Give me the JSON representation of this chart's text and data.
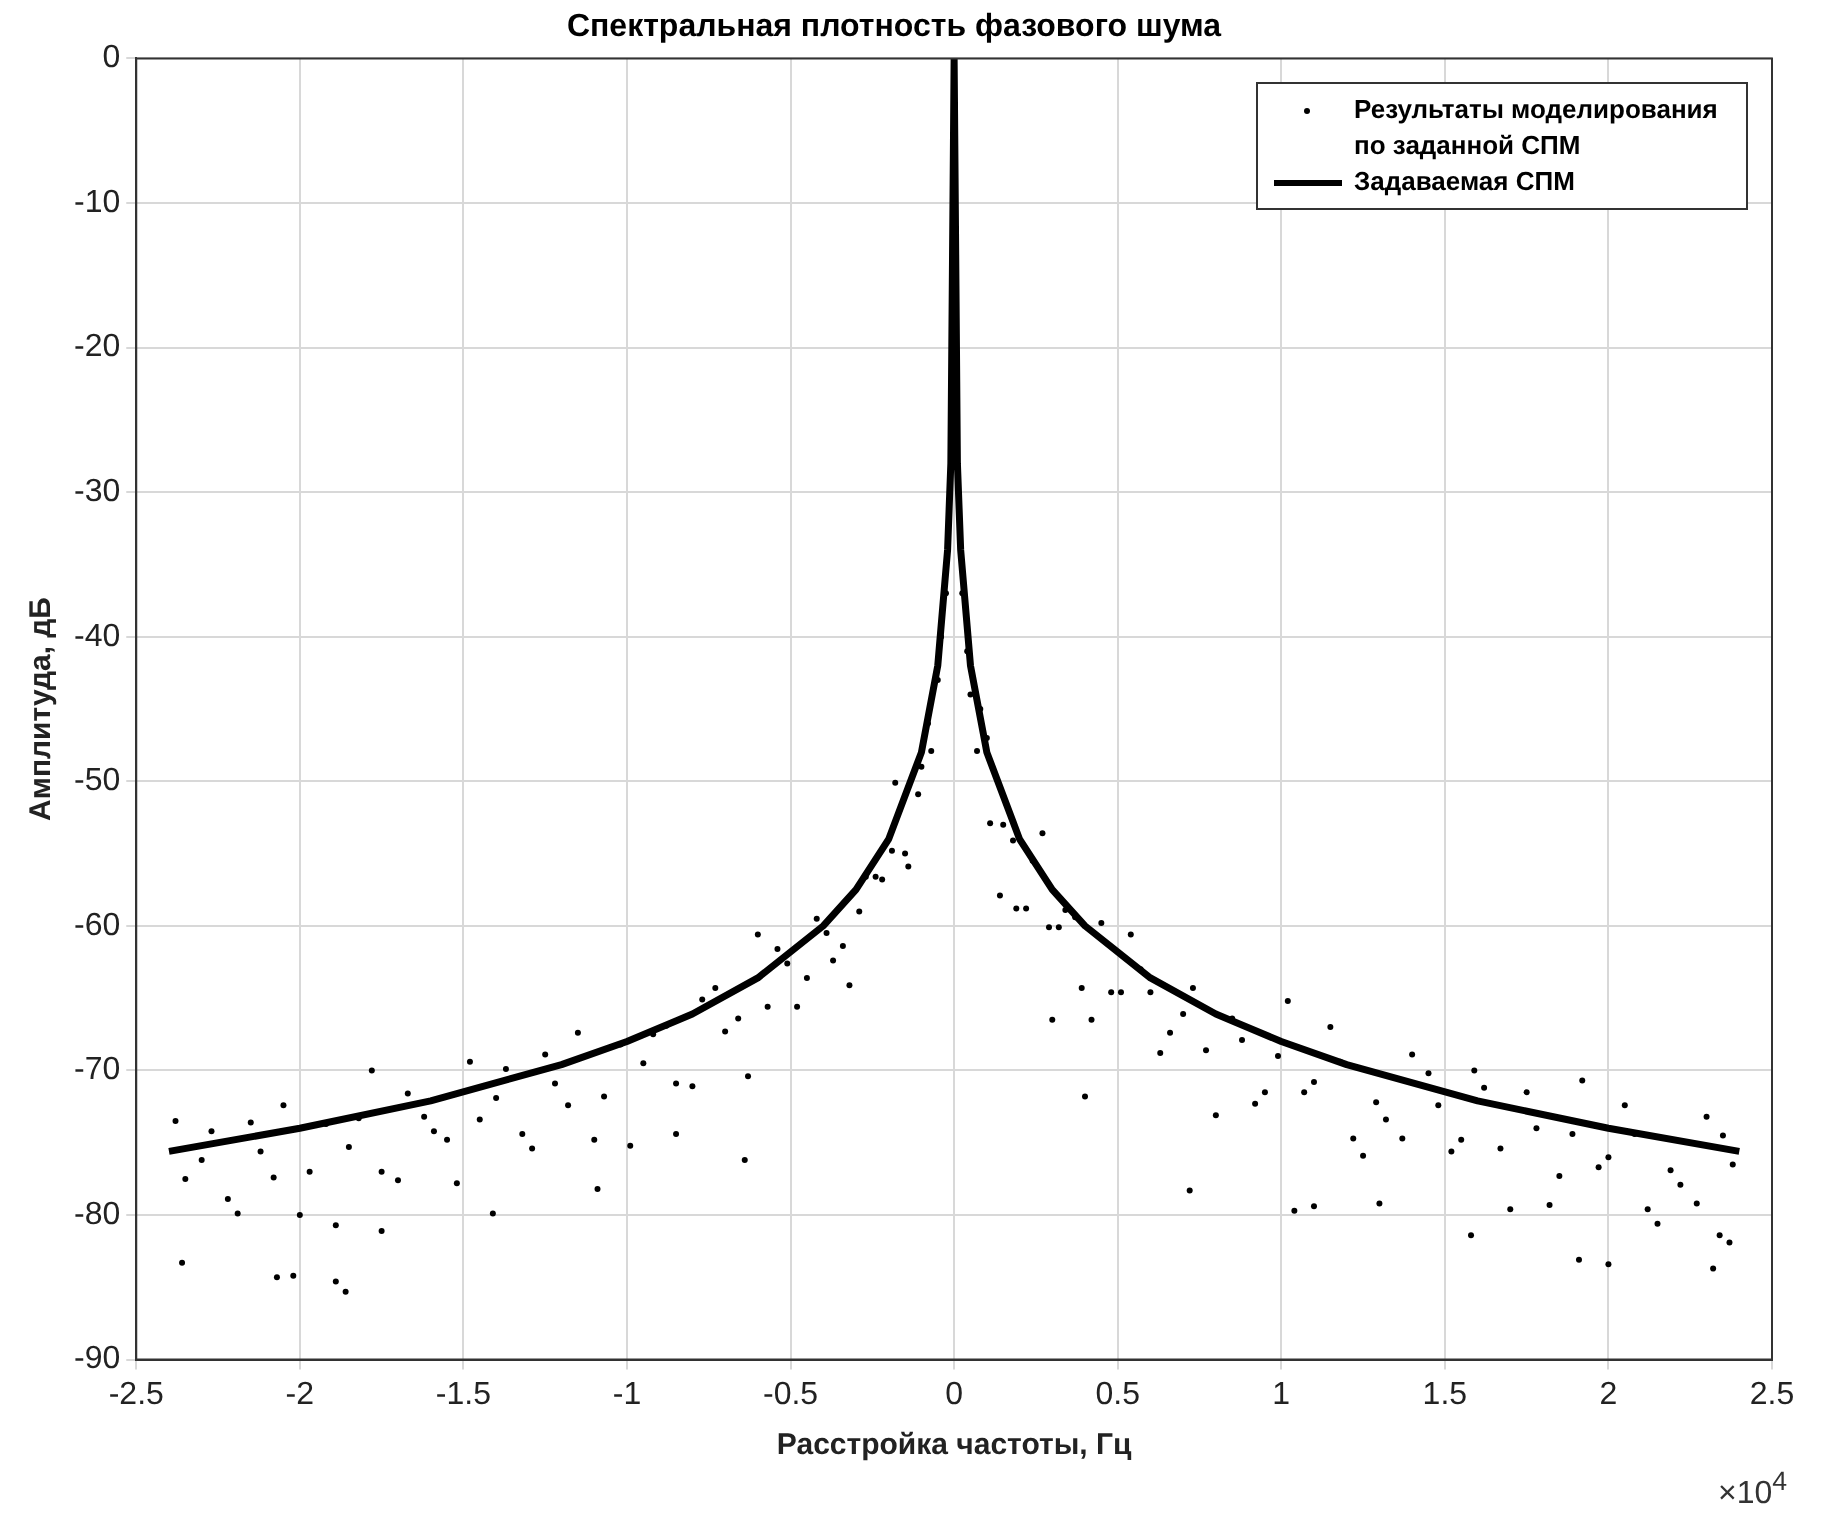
{
  "chart_data": {
    "type": "scatter",
    "title": "Спектральная плотность фазового шума",
    "xlabel": "Расстройка частоты, Гц",
    "ylabel": "Амплитуда, дБ",
    "xlim": [
      -2.5,
      2.5
    ],
    "xticks": [
      -2.5,
      -2,
      -1.5,
      -1,
      -0.5,
      0,
      0.5,
      1,
      1.5,
      2,
      2.5
    ],
    "ylim": [
      -90,
      0
    ],
    "yticks": [
      -90,
      -80,
      -70,
      -60,
      -50,
      -40,
      -30,
      -20,
      -10,
      0
    ],
    "grid": true,
    "legend": "top right",
    "annotations": [
      "×10$^{4}$"
    ],
    "series": [
      {
        "name": "Результаты моделирования по заданной СПМ",
        "type": "scatter",
        "marker": "circle",
        "color": "#000000",
        "x": [
          -2.38,
          -2.3,
          -2.22,
          -2.15,
          -2.08,
          -2.0,
          -1.92,
          -1.85,
          -1.78,
          -1.7,
          -1.62,
          -1.55,
          -1.48,
          -1.4,
          -1.32,
          -1.25,
          -1.18,
          -1.1,
          -1.02,
          -0.95,
          -0.88,
          -0.8,
          -0.73,
          -0.66,
          -0.6,
          -0.54,
          -0.48,
          -0.42,
          -0.37,
          -0.32,
          -0.27,
          -0.22,
          -0.18,
          -0.14,
          -0.1,
          -0.07,
          -0.04,
          -2.35,
          -2.27,
          -2.19,
          -2.12,
          -2.05,
          -1.97,
          -1.89,
          -1.82,
          -1.75,
          -1.67,
          -1.59,
          -1.52,
          -1.45,
          -1.37,
          -1.29,
          -1.22,
          -1.15,
          -1.07,
          -0.99,
          -0.92,
          -0.85,
          -0.77,
          -0.7,
          -0.63,
          -0.57,
          -0.51,
          -0.45,
          -0.39,
          -0.34,
          -0.29,
          -0.24,
          -0.19,
          -0.15,
          -0.11,
          -0.08,
          -0.05,
          -0.025,
          2.38,
          2.3,
          2.22,
          2.15,
          2.08,
          2.0,
          1.92,
          1.85,
          1.78,
          1.7,
          1.62,
          1.55,
          1.48,
          1.4,
          1.32,
          1.25,
          1.18,
          1.1,
          1.02,
          0.95,
          0.88,
          0.8,
          0.73,
          0.66,
          0.6,
          0.54,
          0.48,
          0.42,
          0.37,
          0.32,
          0.27,
          0.22,
          0.18,
          0.14,
          0.1,
          0.07,
          0.04,
          2.35,
          2.27,
          2.19,
          2.12,
          2.05,
          1.97,
          1.89,
          1.82,
          1.75,
          1.67,
          1.59,
          1.52,
          1.45,
          1.37,
          1.29,
          1.22,
          1.15,
          1.07,
          0.99,
          0.92,
          0.85,
          0.77,
          0.7,
          0.63,
          0.57,
          0.51,
          0.45,
          0.39,
          0.34,
          0.29,
          0.24,
          0.19,
          0.15,
          0.11,
          0.08,
          0.05,
          0.025,
          -2.07,
          -2.02,
          -1.89,
          -1.86,
          -2.36,
          -1.09,
          -0.64,
          -0.85,
          -1.41,
          -1.75,
          0.72,
          1.58,
          1.91,
          2.0,
          2.32,
          0.4,
          0.3,
          1.04,
          1.1,
          1.3,
          2.34,
          2.37
        ],
        "values": [
          -73.5,
          -76.2,
          -78.9,
          -73.6,
          -77.4,
          -80.0,
          -73.7,
          -75.3,
          -70.0,
          -77.6,
          -73.2,
          -74.8,
          -69.4,
          -71.9,
          -74.4,
          -68.9,
          -72.4,
          -74.8,
          -68.2,
          -69.5,
          -66.9,
          -71.1,
          -64.3,
          -66.4,
          -60.6,
          -61.6,
          -65.6,
          -59.5,
          -62.4,
          -64.1,
          -56.6,
          -56.8,
          -50.1,
          -55.9,
          -49.0,
          -47.9,
          -40.0,
          -77.5,
          -74.2,
          -79.9,
          -75.6,
          -72.4,
          -77.0,
          -80.7,
          -73.3,
          -77.0,
          -71.6,
          -74.2,
          -77.8,
          -73.4,
          -69.9,
          -75.4,
          -70.9,
          -67.4,
          -71.8,
          -75.2,
          -67.5,
          -70.9,
          -65.1,
          -67.3,
          -70.4,
          -65.6,
          -62.6,
          -63.6,
          -60.5,
          -61.4,
          -59.0,
          -56.6,
          -54.8,
          -55.0,
          -50.9,
          -46.0,
          -43.0,
          -37.0,
          -76.5,
          -73.2,
          -77.9,
          -80.6,
          -74.4,
          -76.0,
          -70.7,
          -77.3,
          -74.0,
          -79.6,
          -71.2,
          -74.8,
          -72.4,
          -68.9,
          -73.4,
          -75.9,
          -69.4,
          -70.8,
          -65.2,
          -71.5,
          -67.9,
          -73.1,
          -64.3,
          -67.4,
          -64.6,
          -60.6,
          -64.6,
          -66.5,
          -59.4,
          -60.1,
          -53.6,
          -58.8,
          -54.1,
          -57.9,
          -47.0,
          -47.9,
          -41.0,
          -74.5,
          -79.2,
          -76.9,
          -79.6,
          -72.4,
          -76.7,
          -74.4,
          -79.3,
          -71.5,
          -75.4,
          -70.0,
          -75.6,
          -70.2,
          -74.7,
          -72.2,
          -74.7,
          -67.0,
          -71.5,
          -69.0,
          -72.3,
          -66.4,
          -68.6,
          -66.1,
          -68.8,
          -63.0,
          -64.6,
          -59.8,
          -64.3,
          -58.9,
          -60.1,
          -55.5,
          -58.8,
          -53.0,
          -52.9,
          -45.0,
          -44.0,
          -37.0,
          -84.3,
          -84.2,
          -84.6,
          -85.3,
          -83.3,
          -78.2,
          -76.2,
          -74.4,
          -79.9,
          -81.1,
          -78.3,
          -81.4,
          -83.1,
          -83.4,
          -83.7,
          -71.8,
          -66.5,
          -79.7,
          -79.4,
          -79.2,
          -81.4,
          -81.9
        ]
      },
      {
        "name": "Задаваемая СПМ",
        "type": "line",
        "line_style": "solid",
        "color": "#000000",
        "x": [
          -2.4,
          -2.0,
          -1.6,
          -1.2,
          -1.0,
          -0.8,
          -0.6,
          -0.4,
          -0.3,
          -0.2,
          -0.1,
          -0.05,
          -0.02,
          -0.01,
          0,
          0.01,
          0.02,
          0.05,
          0.1,
          0.2,
          0.3,
          0.4,
          0.6,
          0.8,
          1.0,
          1.2,
          1.6,
          2.0,
          2.4
        ],
        "values": [
          -75.6,
          -74.0,
          -72.1,
          -69.6,
          -68.0,
          -66.1,
          -63.6,
          -60.0,
          -57.5,
          -54.0,
          -48.0,
          -42.0,
          -34.0,
          -28.0,
          0,
          -28.0,
          -34.0,
          -42.0,
          -48.0,
          -54.0,
          -57.5,
          -60.0,
          -63.6,
          -66.1,
          -68.0,
          -69.6,
          -72.1,
          -74.0,
          -75.6
        ]
      }
    ]
  }
}
